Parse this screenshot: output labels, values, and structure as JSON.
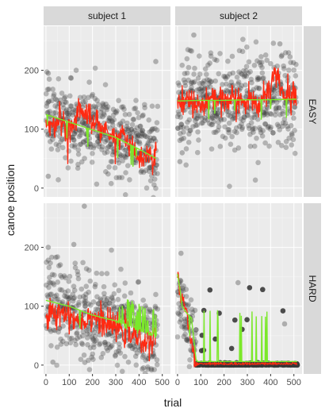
{
  "chart_data": {
    "type": "scatter",
    "facets": {
      "columns": [
        "subject 1",
        "subject 2"
      ],
      "rows": [
        "EASY",
        "HARD"
      ]
    },
    "xlabel": "trial",
    "ylabel": "canoe position",
    "xlim": [
      -10,
      535
    ],
    "ylim": [
      -15,
      275
    ],
    "x_ticks": [
      0,
      100,
      200,
      300,
      400,
      500
    ],
    "y_ticks": [
      0,
      100,
      200
    ],
    "grid": true,
    "legend": "none",
    "colors": {
      "points": "#3a3a3a",
      "red_line": "#ff2a12",
      "green_line": "#7be82a",
      "panel_bg": "#ebebeb",
      "strip_bg": "#d9d9d9",
      "grid_major": "#ffffff"
    },
    "panels": [
      {
        "facet": "subject 1 / EASY",
        "points_summary": {
          "n": 470,
          "x_range": [
            0,
            480
          ],
          "center_start": 125,
          "center_end": 65,
          "spread": 32,
          "outliers": [
            [
              472,
              215
            ],
            [
              10,
              195
            ],
            [
              130,
              200
            ],
            [
              10,
              20
            ]
          ]
        },
        "green_line": {
          "x": [
            0,
            100,
            200,
            300,
            400,
            475
          ],
          "y": [
            125,
            112,
            99,
            86,
            66,
            50
          ]
        },
        "red_line": {
          "x": [
            0,
            30,
            60,
            90,
            120,
            140,
            160,
            200,
            240,
            280,
            300,
            330,
            360,
            400,
            430,
            460,
            475
          ],
          "y": [
            100,
            110,
            120,
            95,
            110,
            140,
            130,
            115,
            105,
            90,
            80,
            95,
            70,
            45,
            55,
            50,
            60
          ]
        }
      },
      {
        "facet": "subject 2 / EASY",
        "points_summary": {
          "n": 515,
          "x_range": [
            0,
            510
          ],
          "center_start": 148,
          "center_end": 152,
          "spread": 42,
          "outliers": [
            [
              70,
              260
            ],
            [
              10,
              45
            ],
            [
              20,
              60
            ],
            [
              440,
              245
            ]
          ]
        },
        "green_line": {
          "x": [
            0,
            100,
            200,
            300,
            400,
            510
          ],
          "y": [
            148,
            149,
            149,
            150,
            150,
            151
          ]
        },
        "red_line": {
          "x": [
            0,
            50,
            100,
            150,
            200,
            250,
            300,
            350,
            400,
            420,
            440,
            470,
            510
          ],
          "y": [
            145,
            150,
            140,
            155,
            150,
            145,
            150,
            148,
            165,
            200,
            175,
            150,
            160
          ]
        }
      },
      {
        "facet": "subject 1 / HARD",
        "points_summary": {
          "n": 475,
          "x_range": [
            0,
            480
          ],
          "center_start": 105,
          "center_end": 45,
          "spread": 38,
          "outliers": [
            [
              165,
              270
            ],
            [
              10,
              200
            ],
            [
              120,
              205
            ],
            [
              30,
              5
            ]
          ]
        },
        "green_line": {
          "x": [
            0,
            100,
            200,
            300,
            400,
            475
          ],
          "y": [
            110,
            100,
            85,
            75,
            60,
            50
          ]
        },
        "red_line": {
          "x": [
            0,
            20,
            40,
            60,
            100,
            150,
            200,
            250,
            300,
            350,
            400,
            440,
            470
          ],
          "y": [
            75,
            90,
            80,
            95,
            85,
            75,
            85,
            70,
            65,
            55,
            45,
            40,
            40
          ]
        }
      },
      {
        "facet": "subject 2 / HARD",
        "points_summary": {
          "n": 515,
          "x_range": [
            0,
            515
          ],
          "center_start": 120,
          "center_end": 0,
          "spread": 10,
          "outliers": [
            [
              15,
              190
            ],
            [
              260,
              140
            ],
            [
              80,
              60
            ],
            [
              460,
              70
            ]
          ]
        },
        "green_line": {
          "x": [
            0,
            10,
            20,
            40,
            60,
            80,
            515
          ],
          "y": [
            155,
            130,
            100,
            88,
            80,
            8,
            6
          ]
        },
        "red_line": {
          "x": [
            0,
            10,
            20,
            30,
            40,
            50,
            60,
            70,
            80,
            515
          ],
          "y": [
            160,
            120,
            115,
            105,
            90,
            60,
            40,
            20,
            4,
            2
          ]
        }
      }
    ]
  }
}
